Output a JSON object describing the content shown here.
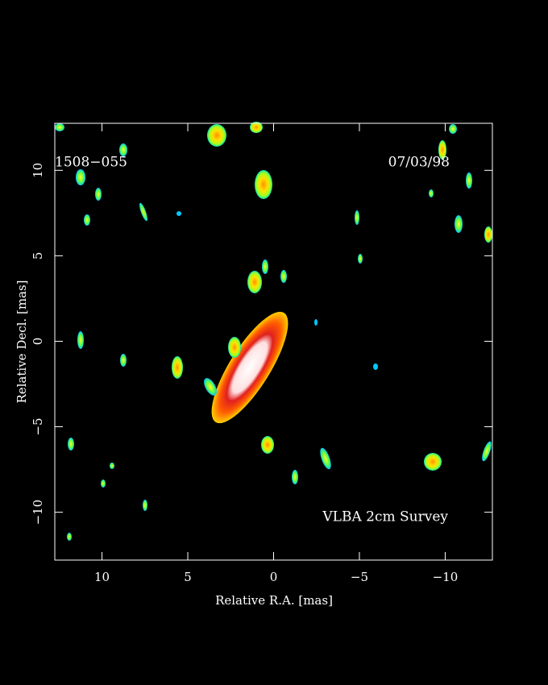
{
  "chart_data": {
    "type": "image",
    "source": "1508−055",
    "date": "07/03/98",
    "annotation": "VLBA 2cm Survey",
    "x_label": "Relative R.A. [mas]",
    "y_label": "Relative Decl. [mas]",
    "xlim": [
      12.75,
      -12.75
    ],
    "ylim": [
      -12.8,
      12.75
    ],
    "xticks": [
      10,
      5,
      0,
      {
        "value": -5,
        "label": "−5"
      },
      {
        "value": -10,
        "label": "−10"
      }
    ],
    "yticks": [
      {
        "value": -10,
        "label": "−10"
      },
      {
        "value": -5,
        "label": "−5"
      },
      0,
      5,
      10
    ]
  }
}
